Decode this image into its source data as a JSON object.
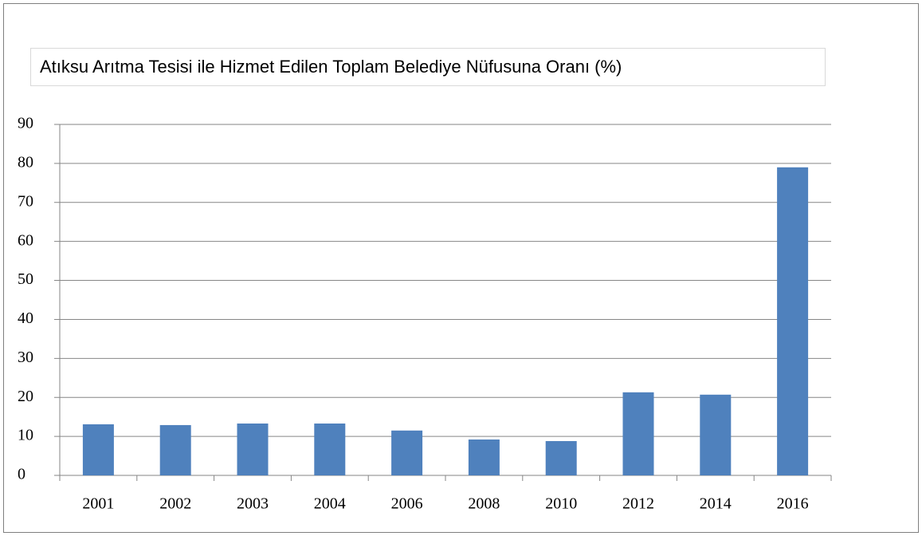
{
  "chart_data": {
    "type": "bar",
    "title": "Atıksu Arıtma Tesisi ile Hizmet Edilen Toplam Belediye Nüfusuna Oranı (%)",
    "categories": [
      "2001",
      "2002",
      "2003",
      "2004",
      "2006",
      "2008",
      "2010",
      "2012",
      "2014",
      "2016"
    ],
    "values": [
      13.1,
      12.9,
      13.3,
      13.3,
      11.5,
      9.2,
      8.8,
      21.3,
      20.7,
      79.0
    ],
    "color": "#4f81bd",
    "ylim": [
      0,
      90
    ],
    "yticks": [
      0,
      10,
      20,
      30,
      40,
      50,
      60,
      70,
      80,
      90
    ],
    "grid": true
  }
}
